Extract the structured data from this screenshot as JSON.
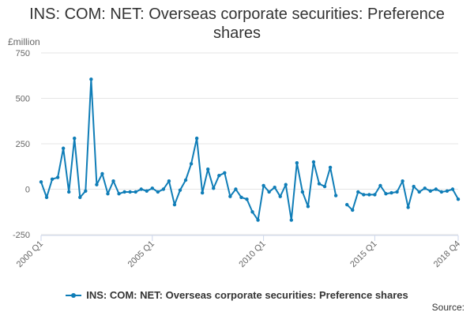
{
  "header": {
    "title": "INS: COM: NET: Overseas corporate securities: Preference shares",
    "unit": "£million",
    "source": "Source:"
  },
  "colors": {
    "series": "#0F7DB7",
    "grid": "#e6e6e6",
    "axis": "#ccd6eb"
  },
  "chart_data": {
    "type": "line",
    "title": "INS: COM: NET: Overseas corporate securities: Preference shares",
    "ylabel": "£million",
    "xlabel": "",
    "ylim": [
      -250,
      750
    ],
    "yticks": [
      -250,
      0,
      250,
      500,
      750
    ],
    "xticks": [
      "2000 Q1",
      "2005 Q1",
      "2010 Q1",
      "2015 Q1",
      "2018 Q4"
    ],
    "grid": true,
    "legend": "bottom",
    "series": [
      {
        "name": "INS: COM: NET: Overseas corporate securities: Preference shares",
        "x": [
          "2000 Q1",
          "2000 Q2",
          "2000 Q3",
          "2000 Q4",
          "2001 Q1",
          "2001 Q2",
          "2001 Q3",
          "2001 Q4",
          "2002 Q1",
          "2002 Q2",
          "2002 Q3",
          "2002 Q4",
          "2003 Q1",
          "2003 Q2",
          "2003 Q3",
          "2003 Q4",
          "2004 Q1",
          "2004 Q2",
          "2004 Q3",
          "2004 Q4",
          "2005 Q1",
          "2005 Q2",
          "2005 Q3",
          "2005 Q4",
          "2006 Q1",
          "2006 Q2",
          "2006 Q3",
          "2006 Q4",
          "2007 Q1",
          "2007 Q2",
          "2007 Q3",
          "2007 Q4",
          "2008 Q1",
          "2008 Q2",
          "2008 Q3",
          "2008 Q4",
          "2009 Q1",
          "2009 Q2",
          "2009 Q3",
          "2009 Q4",
          "2010 Q1",
          "2010 Q2",
          "2010 Q3",
          "2010 Q4",
          "2011 Q1",
          "2011 Q2",
          "2011 Q3",
          "2011 Q4",
          "2012 Q1",
          "2012 Q2",
          "2012 Q3",
          "2012 Q4",
          "2013 Q1",
          "2013 Q2",
          "2013 Q3",
          "2013 Q4",
          "2014 Q1",
          "2014 Q2",
          "2014 Q3",
          "2014 Q4",
          "2015 Q1",
          "2015 Q2",
          "2015 Q3",
          "2015 Q4",
          "2016 Q1",
          "2016 Q2",
          "2016 Q3",
          "2016 Q4",
          "2017 Q1",
          "2017 Q2",
          "2017 Q3",
          "2017 Q4",
          "2018 Q1",
          "2018 Q2",
          "2018 Q3",
          "2018 Q4"
        ],
        "values": [
          40,
          -45,
          55,
          65,
          225,
          -15,
          280,
          -45,
          -10,
          605,
          25,
          85,
          -25,
          45,
          -25,
          -15,
          -15,
          -15,
          0,
          -10,
          5,
          -15,
          0,
          45,
          -85,
          -5,
          50,
          140,
          280,
          -20,
          110,
          5,
          75,
          90,
          -40,
          0,
          -45,
          -55,
          -125,
          -170,
          20,
          -15,
          10,
          -40,
          25,
          -170,
          145,
          -15,
          -95,
          150,
          30,
          15,
          120,
          -35,
          null,
          -85,
          -115,
          -15,
          -30,
          -30,
          -30,
          20,
          -25,
          -20,
          -15,
          45,
          -100,
          15,
          -15,
          5,
          -10,
          0,
          -15,
          -10,
          0,
          -55
        ]
      }
    ]
  }
}
